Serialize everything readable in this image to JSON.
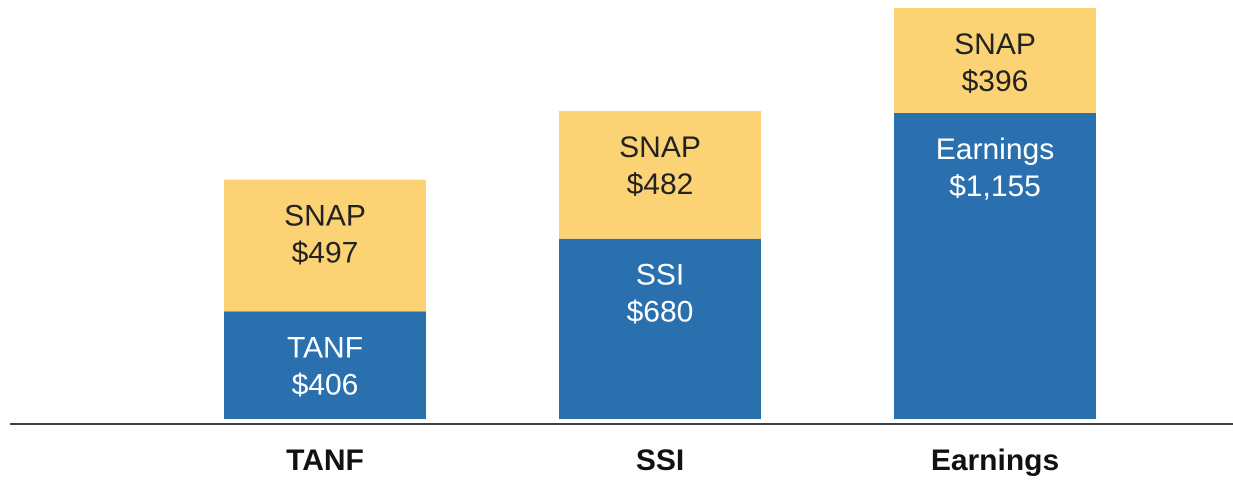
{
  "chart_data": {
    "type": "stacked_bar",
    "categories": [
      "TANF",
      "SSI",
      "Earnings"
    ],
    "series": [
      {
        "color": "#2a70ae",
        "values": [
          406,
          680,
          1155
        ],
        "value_labels": [
          "$406",
          "$680",
          "$1,155"
        ]
      },
      {
        "name": "SNAP",
        "color": "#fcd374",
        "values": [
          497,
          482,
          396
        ],
        "value_labels": [
          "$497",
          "$482",
          "$396"
        ]
      }
    ]
  }
}
